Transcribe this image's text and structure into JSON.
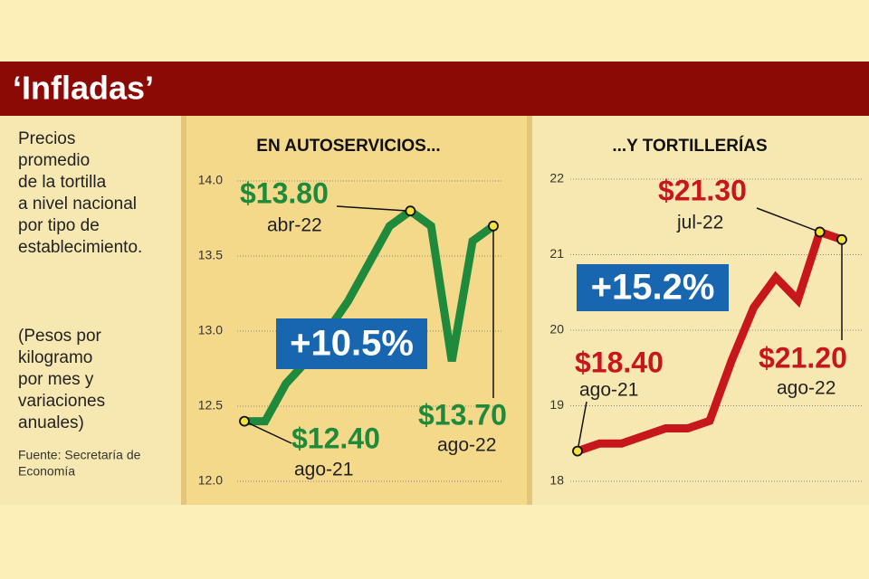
{
  "title": "‘Infladas’",
  "description": [
    "Precios",
    "promedio",
    "de la tortilla",
    "a nivel nacional",
    "por tipo de",
    "establecimiento."
  ],
  "note": [
    "(Pesos por",
    "kilogramo",
    "por mes y",
    "variaciones",
    "anuales)"
  ],
  "source": [
    "Fuente: Secretaría de",
    "Economía"
  ],
  "chart_data": [
    {
      "type": "line",
      "title": "EN AUTOSERVICIOS...",
      "color": "#1f8a3b",
      "categories": [
        "ago-21",
        null,
        null,
        null,
        null,
        null,
        null,
        null,
        "abr-22",
        null,
        null,
        null,
        "ago-22"
      ],
      "values": [
        12.4,
        12.4,
        12.65,
        12.8,
        13.0,
        13.2,
        13.45,
        13.7,
        13.8,
        13.7,
        12.8,
        13.6,
        13.7
      ],
      "value_labels": [
        "$12.40",
        null,
        null,
        null,
        null,
        null,
        null,
        null,
        "$13.80",
        null,
        null,
        null,
        "$13.70"
      ],
      "annotation": "+10.5%",
      "ylim": [
        12.0,
        14.0
      ],
      "yticks": [
        {
          "value": 12,
          "label": "12.0"
        },
        12.5,
        {
          "value": 13,
          "label": "13.0"
        },
        13.5,
        {
          "value": 14,
          "label": "14.0"
        }
      ],
      "grid": true
    },
    {
      "type": "line",
      "title": "...Y TORTILLERÍAS",
      "color": "#c8161d",
      "categories": [
        "ago-21",
        null,
        null,
        null,
        null,
        null,
        null,
        null,
        null,
        null,
        null,
        "jul-22",
        "ago-22"
      ],
      "values": [
        18.4,
        18.5,
        18.5,
        18.6,
        18.7,
        18.7,
        18.8,
        19.6,
        20.3,
        20.7,
        20.4,
        21.3,
        21.2
      ],
      "value_labels": [
        "$18.40",
        null,
        null,
        null,
        null,
        null,
        null,
        null,
        null,
        null,
        null,
        "$21.30",
        "$21.20"
      ],
      "annotation": "+15.2%",
      "ylim": [
        18,
        22
      ],
      "yticks": [
        18,
        19,
        20,
        21,
        22
      ],
      "grid": true
    }
  ]
}
